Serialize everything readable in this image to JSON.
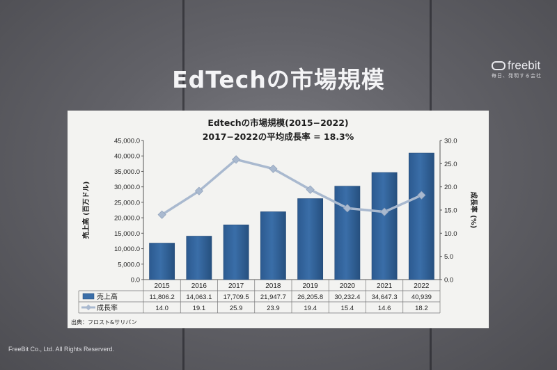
{
  "slide": {
    "title": "EdTechの市場規模",
    "footer": "FreeBit Co., Ltd. All Rights Reserverd."
  },
  "logo": {
    "name": "freebit",
    "tagline": "毎日、発明する会社"
  },
  "chart_data": {
    "type": "bar",
    "title": "Edtechの市場規模(2015−2022)",
    "subtitle": "2017−2022の平均成長率 = 18.3%",
    "categories": [
      "2015",
      "2016",
      "2017",
      "2018",
      "2019",
      "2020",
      "2021",
      "2022"
    ],
    "series": [
      {
        "name": "売上高",
        "type": "bar",
        "axis": "left",
        "color": "#3a6ea8",
        "values": [
          11806.2,
          14063.1,
          17709.5,
          21947.7,
          26205.8,
          30232.4,
          34647.3,
          40939
        ],
        "labels": [
          "11,806.2",
          "14,063.1",
          "17,709.5",
          "21,947.7",
          "26,205.8",
          "30,232.4",
          "34,647.3",
          "40,939"
        ]
      },
      {
        "name": "成長率",
        "type": "line",
        "axis": "right",
        "color": "#a9b9cf",
        "values": [
          14.0,
          19.1,
          25.9,
          23.9,
          19.4,
          15.4,
          14.6,
          18.2
        ],
        "labels": [
          "14.0",
          "19.1",
          "25.9",
          "23.9",
          "19.4",
          "15.4",
          "14.6",
          "18.2"
        ]
      }
    ],
    "ylabel": "売上高 (百万ドル)",
    "ylim": [
      0,
      45000
    ],
    "yticks": [
      "0.0",
      "5,000.0",
      "10,000.0",
      "15,000.0",
      "20,000.0",
      "25,000.0",
      "30,000.0",
      "35,000.0",
      "40,000.0",
      "45,000.0"
    ],
    "y2label": "成長率 (%)",
    "y2lim": [
      0,
      30
    ],
    "y2ticks": [
      "0.0",
      "5.0",
      "10.0",
      "15.0",
      "20.0",
      "25.0",
      "30.0"
    ],
    "grid": false,
    "legend": "data-table below plot",
    "source": "出典：フロスト&サリバン"
  },
  "colors": {
    "background": "#5b5b60",
    "panel": "#f3f3f1",
    "bar": "#3a6ea8",
    "line": "#a9b9cf"
  }
}
